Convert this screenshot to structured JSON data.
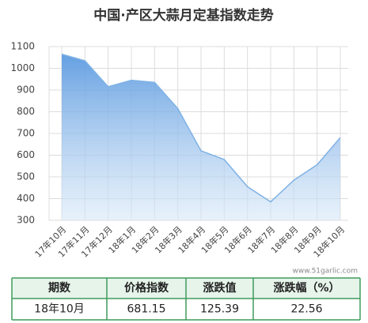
{
  "chart_data": {
    "type": "area",
    "title": "中国·产区大蒜月定基指数走势",
    "categories": [
      "17年10月",
      "17年11月",
      "17年12月",
      "18年1月",
      "18年2月",
      "18年3月",
      "18年4月",
      "18年5月",
      "18年6月",
      "18年7月",
      "18年8月",
      "18年9月",
      "18年10月"
    ],
    "values": [
      1065,
      1035,
      915,
      945,
      935,
      815,
      620,
      580,
      455,
      385,
      485,
      555.76,
      681.15
    ],
    "color": "#7fb2e5",
    "ylim": [
      300,
      1100
    ],
    "yticks": [
      300,
      400,
      500,
      600,
      700,
      800,
      900,
      1000,
      1100
    ],
    "grid": true
  },
  "watermark": "www.51garlic.com",
  "table": {
    "header": [
      "期数",
      "价格指数",
      "涨跌值",
      "涨跌幅（%）"
    ],
    "rows": [
      [
        "18年10月",
        "681.15",
        "125.39",
        "22.56"
      ]
    ]
  }
}
